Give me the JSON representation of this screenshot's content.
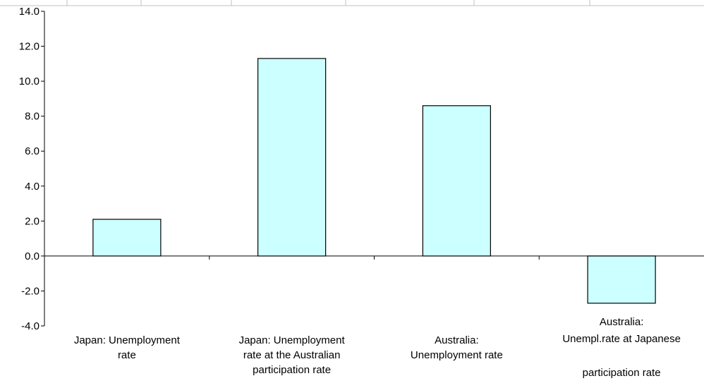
{
  "chart_data": {
    "type": "bar",
    "title": "",
    "xlabel": "",
    "ylabel": "",
    "ylim": [
      -4,
      14
    ],
    "yticks": [
      14,
      12,
      10,
      8,
      6,
      4,
      2,
      0,
      -2,
      -4
    ],
    "ytick_labels": [
      "14.0",
      "12.0",
      "10.0",
      "8.0",
      "6.0",
      "4.0",
      "2.0",
      "0.0",
      "-2.0",
      "-4.0"
    ],
    "grid": false,
    "categories": [
      "Japan: Unemployment rate",
      "Japan: Unemployment rate at the Australian participation rate",
      "Australia: Unemployment rate",
      "Australia: Unempl.rate at Japanese participation rate"
    ],
    "category_label_lines": [
      [
        "Japan: Unemployment",
        "rate"
      ],
      [
        "Japan: Unemployment",
        "rate at the Australian",
        "participation rate"
      ],
      [
        "Australia:",
        "Unemployment rate"
      ],
      [
        "Australia:",
        "Unempl.rate at Japanese",
        "",
        "participation rate"
      ]
    ],
    "values": [
      2.1,
      11.3,
      8.6,
      -2.7
    ],
    "colors": {
      "bar_fill": "#ccffff",
      "bar_stroke": "#000000",
      "axis": "#000000",
      "top_grid": "#c0c0c0"
    }
  }
}
